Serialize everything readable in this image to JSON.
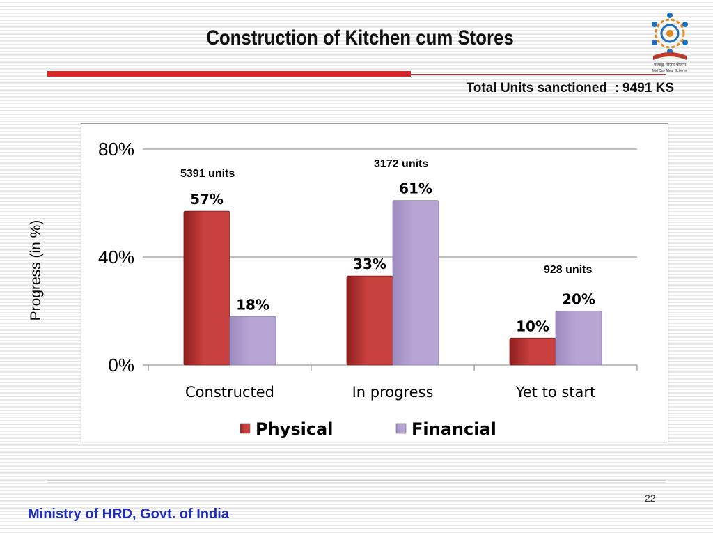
{
  "slide": {
    "title": "Construction of Kitchen cum Stores",
    "total_units": "Total Units sanctioned  : 9491 KS",
    "footer": "Ministry of HRD, Govt. of India",
    "page_number": "22",
    "logo_text": "मध्याह्न भोजन योजना",
    "logo_caption": "Mid Day Meal Scheme"
  },
  "colors": {
    "title_rule": "#d9262b",
    "footer_text": "#1f2dbf",
    "physical": "#c9413f",
    "financial": "#b7a6d4"
  },
  "chart_data": {
    "type": "bar",
    "categories": [
      "Constructed",
      "In progress",
      "Yet to start"
    ],
    "series": [
      {
        "name": "Physical",
        "values": [
          57,
          33,
          10
        ],
        "labels": [
          "57%",
          "33%",
          "10%"
        ],
        "color": "#c9413f"
      },
      {
        "name": "Financial",
        "values": [
          18,
          61,
          20
        ],
        "labels": [
          "18%",
          "61%",
          "20%"
        ],
        "color": "#b7a6d4"
      }
    ],
    "unit_annotations": [
      {
        "category": "Constructed",
        "text": "5391 units"
      },
      {
        "category": "In progress",
        "text": "3172 units"
      },
      {
        "category": "Yet to start",
        "text": "928 units"
      }
    ],
    "ylabel": "Progress (in %)",
    "ylim": [
      0,
      80
    ],
    "yticks": [
      0,
      40,
      80
    ],
    "ytick_labels": [
      "0%",
      "40%",
      "80%"
    ],
    "grid": true,
    "legend": "bottom"
  }
}
